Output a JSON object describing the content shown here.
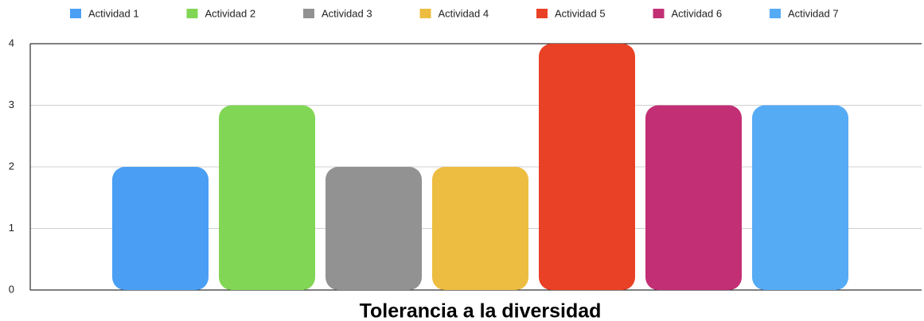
{
  "chart_data": {
    "type": "bar",
    "categories": [
      "Tolerancia a la diversidad"
    ],
    "series": [
      {
        "name": "Actividad 1",
        "color": "#4a9ff5",
        "values": [
          2
        ]
      },
      {
        "name": "Actividad 2",
        "color": "#82d655",
        "values": [
          3
        ]
      },
      {
        "name": "Actividad 3",
        "color": "#929292",
        "values": [
          2
        ]
      },
      {
        "name": "Actividad 4",
        "color": "#edbd41",
        "values": [
          2
        ]
      },
      {
        "name": "Actividad 5",
        "color": "#e94126",
        "values": [
          4
        ]
      },
      {
        "name": "Actividad 6",
        "color": "#c22f74",
        "values": [
          3
        ]
      },
      {
        "name": "Actividad 7",
        "color": "#56abf5",
        "values": [
          3
        ]
      }
    ],
    "ylim": [
      0,
      4
    ],
    "yticks": [
      0,
      1,
      2,
      3,
      4
    ],
    "grid": true,
    "legend": "top"
  }
}
